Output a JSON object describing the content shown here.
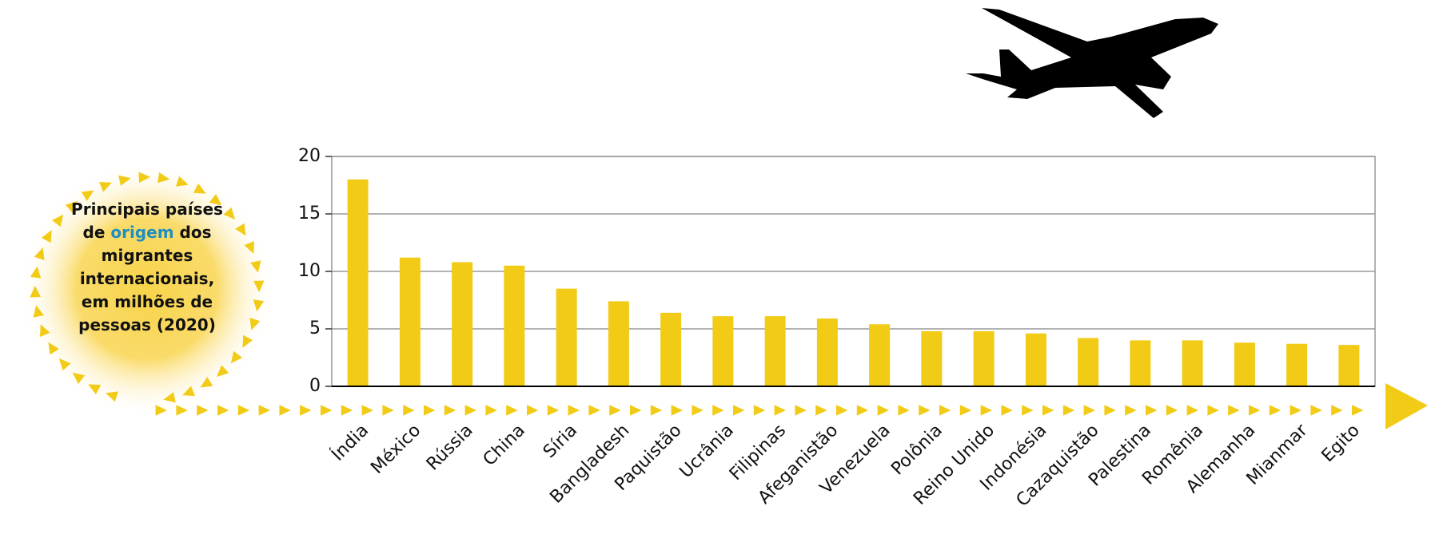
{
  "chart_data": {
    "type": "bar",
    "title_parts": [
      "Principais países de ",
      "origem",
      " dos migrantes internacionais, em milhões de pessoas (2020)"
    ],
    "categories": [
      "Índia",
      "México",
      "Rússia",
      "China",
      "Síria",
      "Bangladesh",
      "Paquistão",
      "Ucrânia",
      "Filipinas",
      "Afeganistão",
      "Venezuela",
      "Polônia",
      "Reino Unido",
      "Indonésia",
      "Cazaquistão",
      "Palestina",
      "Romênia",
      "Alemanha",
      "Mianmar",
      "Egito"
    ],
    "values": [
      18,
      11.2,
      10.8,
      10.5,
      8.5,
      7.4,
      6.4,
      6.1,
      6.1,
      5.9,
      5.4,
      4.8,
      4.8,
      4.6,
      4.2,
      4.0,
      4.0,
      3.8,
      3.7,
      3.6
    ],
    "color": "#f2cb16",
    "ylim": [
      0,
      20
    ],
    "yticks": [
      0,
      5,
      10,
      15,
      20
    ],
    "grid": true
  }
}
